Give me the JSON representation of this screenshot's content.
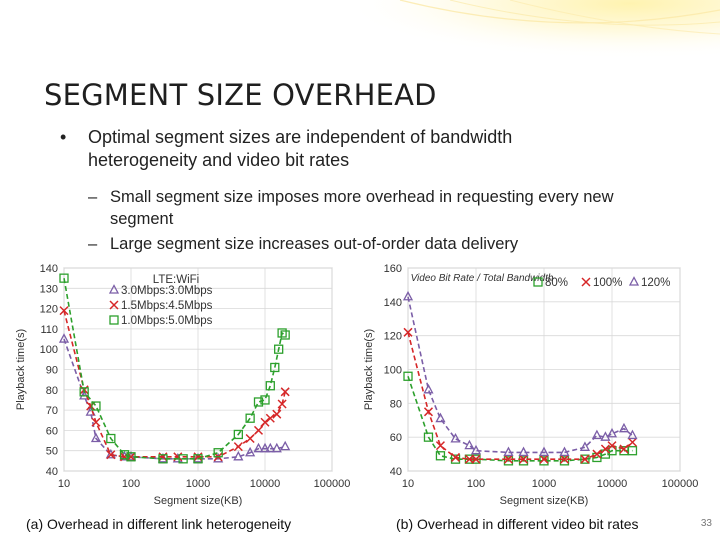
{
  "slide": {
    "title": "SEGMENT SIZE OVERHEAD",
    "bullet": "Optimal segment sizes are independent of bandwidth heterogeneity and video bit rates",
    "sub_bullets": [
      "Small segment size imposes more overhead in requesting every new segment",
      "Large segment size increases out-of-order data delivery"
    ],
    "captions": [
      "(a) Overhead in different link heterogeneity",
      "(b) Overhead in different video bit rates"
    ],
    "page_number": "33",
    "bullet_glyph": "•",
    "dash_glyph": "–"
  },
  "chart_data": [
    {
      "type": "line",
      "xscale": "log",
      "xlabel": "Segment size(KB)",
      "ylabel": "Playback time(s)",
      "xlim": [
        10,
        100000
      ],
      "ylim": [
        40,
        140
      ],
      "xticks": [
        "10",
        "100",
        "1000",
        "10000",
        "100000"
      ],
      "yticks": [
        40,
        50,
        60,
        70,
        80,
        90,
        100,
        110,
        120,
        130,
        140
      ],
      "grid": true,
      "legend_title": "LTE:WiFi",
      "legend_placement": "top-left",
      "series": [
        {
          "name": "3.0Mbps:3.0Mbps",
          "color": "#7b5ea7",
          "marker": "triangle",
          "x": [
            10,
            20,
            25,
            30,
            50,
            80,
            100,
            300,
            500,
            1000,
            2000,
            4000,
            6000,
            8000,
            10000,
            12000,
            15000,
            20000
          ],
          "y": [
            105,
            77,
            69,
            56,
            48,
            47,
            47,
            46,
            46,
            46,
            46,
            47,
            49,
            51,
            51,
            51,
            51,
            52
          ]
        },
        {
          "name": "1.5Mbps:4.5Mbps",
          "color": "#d62728",
          "marker": "x",
          "x": [
            10,
            20,
            25,
            30,
            50,
            80,
            100,
            300,
            500,
            1000,
            2000,
            4000,
            6000,
            8000,
            10000,
            12000,
            15000,
            18000,
            20000
          ],
          "y": [
            119,
            80,
            72,
            64,
            48,
            47,
            47,
            47,
            47,
            47,
            47,
            52,
            56,
            60,
            64,
            66,
            68,
            73,
            79
          ]
        },
        {
          "name": "1.0Mbps:5.0Mbps",
          "color": "#2ca02c",
          "marker": "square",
          "x": [
            10,
            20,
            30,
            50,
            80,
            100,
            300,
            600,
            1000,
            2000,
            4000,
            6000,
            8000,
            10000,
            12000,
            14000,
            16000,
            18000,
            20000
          ],
          "y": [
            135,
            79,
            72,
            56,
            48,
            47,
            46,
            46,
            46,
            49,
            58,
            66,
            74,
            75,
            82,
            91,
            100,
            108,
            107
          ]
        }
      ]
    },
    {
      "type": "line",
      "xscale": "log",
      "xlabel": "Segment size(KB)",
      "ylabel": "Playback time(s)",
      "xlim": [
        10,
        100000
      ],
      "ylim": [
        40,
        160
      ],
      "xticks": [
        "10",
        "100",
        "1000",
        "10000",
        "100000"
      ],
      "yticks": [
        40,
        60,
        80,
        100,
        120,
        140,
        160
      ],
      "grid": true,
      "legend_title": "Video Bit Rate / Total Bandwidth",
      "legend_placement": "top",
      "series": [
        {
          "name": "80%",
          "color": "#2ca02c",
          "marker": "square",
          "x": [
            10,
            20,
            30,
            50,
            80,
            100,
            300,
            500,
            1000,
            2000,
            4000,
            6000,
            8000,
            10000,
            15000,
            20000
          ],
          "y": [
            96,
            60,
            49,
            47,
            47,
            47,
            46,
            46,
            46,
            46,
            47,
            48,
            50,
            52,
            52,
            52
          ]
        },
        {
          "name": "100%",
          "color": "#d62728",
          "marker": "x",
          "x": [
            10,
            20,
            30,
            50,
            80,
            100,
            300,
            500,
            1000,
            2000,
            4000,
            6000,
            8000,
            10000,
            15000,
            20000
          ],
          "y": [
            122,
            75,
            55,
            48,
            47,
            47,
            47,
            47,
            47,
            47,
            47,
            50,
            53,
            55,
            53,
            57
          ]
        },
        {
          "name": "120%",
          "color": "#7b5ea7",
          "marker": "triangle",
          "x": [
            10,
            20,
            30,
            50,
            80,
            100,
            300,
            500,
            1000,
            2000,
            4000,
            6000,
            8000,
            10000,
            15000,
            20000
          ],
          "y": [
            143,
            88,
            71,
            59,
            55,
            52,
            51,
            51,
            51,
            51,
            54,
            61,
            60,
            62,
            65,
            61
          ]
        }
      ]
    }
  ]
}
